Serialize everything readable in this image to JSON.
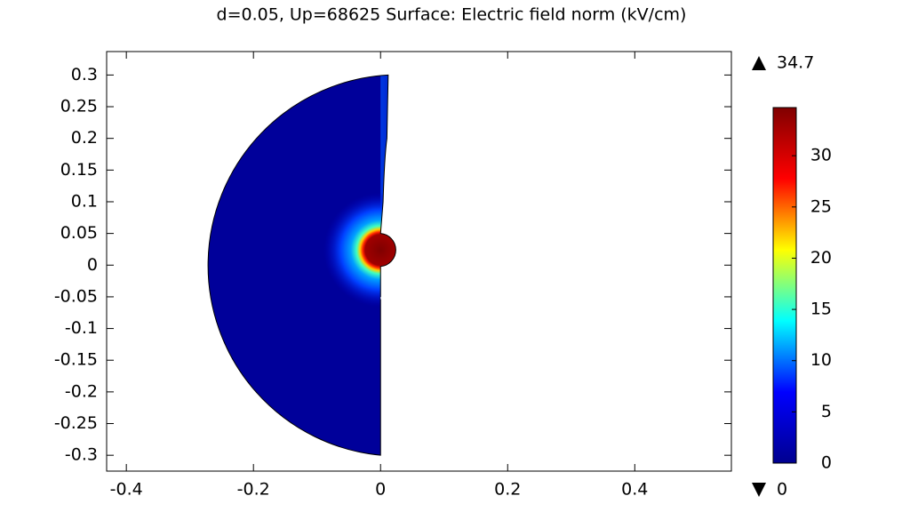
{
  "chart_data": {
    "type": "surface",
    "title": "d=0.05, Up=68625   Surface: Electric field norm (kV/cm)",
    "xlim": [
      -0.431,
      0.552
    ],
    "ylim": [
      -0.325,
      0.337
    ],
    "xticks": [
      -0.4,
      -0.2,
      0,
      0.2,
      0.4
    ],
    "yticks": [
      -0.3,
      -0.25,
      -0.2,
      -0.15,
      -0.1,
      -0.05,
      0,
      0.05,
      0.1,
      0.15,
      0.2,
      0.25,
      0.3
    ],
    "grid": false,
    "colorbar": {
      "min": 0,
      "max": 34.7,
      "ticks": [
        0,
        5,
        10,
        15,
        20,
        25,
        30
      ],
      "colormap": [
        "#00008f",
        "#0000ff",
        "#00ffff",
        "#ffff00",
        "#ff0000",
        "#800000"
      ]
    }
  }
}
